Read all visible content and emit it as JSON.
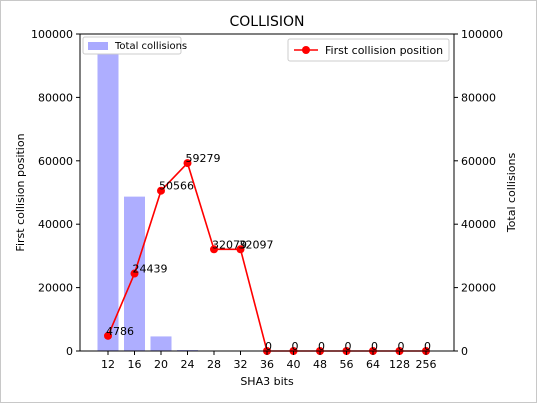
{
  "chart_data": {
    "type": "bar+line",
    "title": "COLLISION",
    "xlabel": "SHA3 bits",
    "ylabel_left": "First collision position",
    "ylabel_right": "Total collisions",
    "categories": [
      "12",
      "16",
      "20",
      "24",
      "28",
      "32",
      "36",
      "40",
      "48",
      "56",
      "64",
      "128",
      "256"
    ],
    "ylim_left": [
      0,
      100000
    ],
    "ylim_right": [
      0,
      100000
    ],
    "yticks": [
      "0",
      "20000",
      "40000",
      "60000",
      "80000",
      "100000"
    ],
    "series": [
      {
        "name": "Total collisions",
        "type": "bar",
        "axis": "right",
        "color": "#aaaaff",
        "values": [
          96000,
          48700,
          4600,
          300,
          0,
          0,
          0,
          0,
          0,
          0,
          0,
          0,
          0
        ]
      },
      {
        "name": "First collision position",
        "type": "line",
        "axis": "left",
        "color": "#ff0000",
        "values": [
          4786,
          24439,
          50566,
          59279,
          32079,
          32097,
          0,
          0,
          0,
          0,
          0,
          0,
          0
        ],
        "labels": [
          "4786",
          "24439",
          "50566",
          "59279",
          "32079",
          "32097",
          "0",
          "0",
          "0",
          "0",
          "0",
          "0",
          "0"
        ]
      }
    ],
    "legend_left": "top-left",
    "legend_right": "top-right",
    "grid": false
  }
}
